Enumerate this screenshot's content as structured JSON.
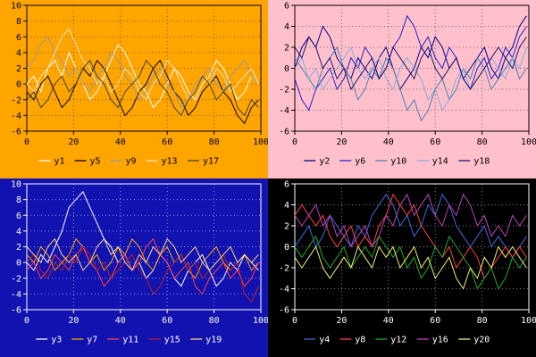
{
  "chart_data": [
    {
      "type": "line",
      "position": "top-left",
      "title": "",
      "xlabel": "",
      "ylabel": "",
      "background": "#ffa500",
      "axis_color": "#000000",
      "text_color": "#000000",
      "grid": true,
      "legend_position": "bottom",
      "xlim": [
        0,
        100
      ],
      "ylim": [
        -6,
        10
      ],
      "xticks": [
        0,
        20,
        40,
        60,
        80,
        100
      ],
      "yticks": [
        10,
        8,
        6,
        4,
        2,
        0,
        -2,
        -4,
        -6
      ],
      "x": [
        0,
        3,
        6,
        9,
        12,
        15,
        18,
        21,
        24,
        27,
        30,
        33,
        36,
        39,
        42,
        45,
        48,
        51,
        54,
        57,
        60,
        63,
        66,
        69,
        72,
        75,
        78,
        81,
        84,
        87,
        90,
        93,
        96,
        99
      ],
      "series": [
        {
          "name": "y1",
          "color": "#ffffff",
          "values": [
            0,
            1,
            -1,
            2,
            3,
            1,
            4,
            2,
            0,
            -2,
            -1,
            1,
            3,
            5,
            4,
            2,
            0,
            -1,
            -3,
            -2,
            0,
            2,
            1,
            -1,
            -2,
            0,
            1,
            3,
            2,
            0,
            -2,
            -1,
            1,
            0
          ]
        },
        {
          "name": "y5",
          "color": "#000000",
          "values": [
            -1,
            -2,
            0,
            1,
            -1,
            -3,
            -2,
            0,
            2,
            1,
            3,
            2,
            0,
            -2,
            -4,
            -3,
            -1,
            0,
            2,
            3,
            1,
            -1,
            -2,
            -4,
            -3,
            -1,
            0,
            1,
            -1,
            -2,
            -4,
            -5,
            -3,
            -2
          ]
        },
        {
          "name": "y9",
          "color": "#9a9a9a",
          "values": [
            2,
            3,
            5,
            6,
            4,
            3,
            1,
            2,
            0,
            -1,
            1,
            2,
            4,
            3,
            1,
            0,
            -2,
            -1,
            1,
            2,
            0,
            -1,
            -3,
            -2,
            0,
            1,
            2,
            0,
            -1,
            1,
            2,
            3,
            1,
            0
          ]
        },
        {
          "name": "y13",
          "color": "#f0e0c0",
          "values": [
            0,
            -1,
            1,
            2,
            4,
            6,
            7,
            5,
            3,
            2,
            0,
            1,
            -1,
            0,
            2,
            1,
            -1,
            -2,
            0,
            1,
            3,
            2,
            0,
            -2,
            -1,
            1,
            0,
            2,
            1,
            -1,
            0,
            1,
            2,
            0
          ]
        },
        {
          "name": "y17",
          "color": "#404040",
          "values": [
            -2,
            -1,
            -3,
            -2,
            0,
            1,
            -1,
            0,
            2,
            3,
            1,
            0,
            -2,
            -3,
            -1,
            0,
            1,
            3,
            2,
            0,
            -1,
            -3,
            -4,
            -2,
            -1,
            1,
            0,
            -2,
            -1,
            0,
            -3,
            -4,
            -2,
            -3
          ]
        }
      ]
    },
    {
      "type": "line",
      "position": "top-right",
      "title": "",
      "xlabel": "",
      "ylabel": "",
      "background": "#ffc0cb",
      "axis_color": "#000000",
      "text_color": "#000000",
      "grid": true,
      "legend_position": "bottom",
      "xlim": [
        0,
        100
      ],
      "ylim": [
        -6,
        6
      ],
      "xticks": [
        0,
        20,
        40,
        60,
        80,
        100
      ],
      "yticks": [
        6,
        4,
        2,
        0,
        -2,
        -4,
        -6
      ],
      "x": [
        0,
        3,
        6,
        9,
        12,
        15,
        18,
        21,
        24,
        27,
        30,
        33,
        36,
        39,
        42,
        45,
        48,
        51,
        54,
        57,
        60,
        63,
        66,
        69,
        72,
        75,
        78,
        81,
        84,
        87,
        90,
        93,
        96,
        99
      ],
      "series": [
        {
          "name": "y2",
          "color": "#00008b",
          "values": [
            0,
            2,
            3,
            2,
            4,
            3,
            1,
            0,
            -1,
            1,
            0,
            -1,
            1,
            2,
            0,
            -2,
            -1,
            0,
            2,
            1,
            3,
            2,
            0,
            1,
            -1,
            0,
            1,
            2,
            0,
            -1,
            1,
            2,
            4,
            5
          ]
        },
        {
          "name": "y6",
          "color": "#2222cc",
          "values": [
            -1,
            -3,
            -4,
            -2,
            -1,
            0,
            -2,
            -1,
            1,
            0,
            2,
            1,
            -1,
            0,
            2,
            3,
            5,
            4,
            2,
            3,
            1,
            0,
            2,
            1,
            -1,
            -2,
            0,
            1,
            -1,
            0,
            2,
            1,
            3,
            4
          ]
        },
        {
          "name": "y10",
          "color": "#4682b4",
          "values": [
            1,
            0,
            -1,
            -2,
            0,
            1,
            2,
            0,
            -1,
            -3,
            -2,
            0,
            -1,
            1,
            0,
            -2,
            -4,
            -3,
            -5,
            -4,
            -2,
            -1,
            -3,
            -2,
            0,
            -1,
            1,
            0,
            -2,
            -1,
            0,
            1,
            -1,
            0
          ]
        },
        {
          "name": "y14",
          "color": "#87aade",
          "values": [
            0,
            1,
            -1,
            0,
            -2,
            -1,
            0,
            1,
            2,
            0,
            -1,
            0,
            1,
            -1,
            -2,
            0,
            1,
            0,
            -1,
            -3,
            -2,
            -4,
            -3,
            -1,
            0,
            -2,
            -1,
            0,
            1,
            0,
            -1,
            1,
            0,
            2
          ]
        },
        {
          "name": "y18",
          "color": "#191970",
          "values": [
            2,
            1,
            3,
            2,
            0,
            1,
            -1,
            0,
            -2,
            -1,
            0,
            1,
            -1,
            0,
            2,
            1,
            0,
            -1,
            1,
            2,
            0,
            -1,
            0,
            1,
            -1,
            -2,
            -1,
            0,
            1,
            2,
            1,
            0,
            2,
            3
          ]
        }
      ]
    },
    {
      "type": "line",
      "position": "bottom-left",
      "title": "",
      "xlabel": "",
      "ylabel": "",
      "background": "#1212b0",
      "axis_color": "#ffffff",
      "text_color": "#ffffff",
      "grid": true,
      "legend_position": "bottom",
      "xlim": [
        0,
        100
      ],
      "ylim": [
        -6,
        10
      ],
      "xticks": [
        0,
        20,
        40,
        60,
        80,
        100
      ],
      "yticks": [
        10,
        8,
        6,
        4,
        2,
        0,
        -2,
        -4,
        -6
      ],
      "x": [
        0,
        3,
        6,
        9,
        12,
        15,
        18,
        21,
        24,
        27,
        30,
        33,
        36,
        39,
        42,
        45,
        48,
        51,
        54,
        57,
        60,
        63,
        66,
        69,
        72,
        75,
        78,
        81,
        84,
        87,
        90,
        93,
        96,
        99
      ],
      "series": [
        {
          "name": "y3",
          "color": "#ffffff",
          "values": [
            0,
            -1,
            1,
            0,
            2,
            4,
            7,
            8,
            9,
            7,
            5,
            3,
            2,
            0,
            1,
            -1,
            0,
            -2,
            -1,
            1,
            0,
            -2,
            -3,
            -1,
            0,
            1,
            -1,
            -3,
            -2,
            0,
            -1,
            1,
            0,
            -1
          ]
        },
        {
          "name": "y7",
          "color": "#ffa500",
          "values": [
            1,
            0,
            2,
            1,
            -1,
            0,
            1,
            3,
            2,
            0,
            1,
            -1,
            0,
            2,
            1,
            3,
            2,
            0,
            -1,
            1,
            2,
            0,
            1,
            -1,
            -2,
            0,
            1,
            2,
            0,
            -1,
            0,
            1,
            -1,
            0
          ]
        },
        {
          "name": "y11",
          "color": "#ff4040",
          "values": [
            -1,
            0,
            -2,
            -1,
            1,
            0,
            -1,
            1,
            2,
            0,
            -1,
            -3,
            -2,
            0,
            1,
            -1,
            0,
            2,
            3,
            1,
            0,
            -2,
            -1,
            0,
            -3,
            -4,
            -2,
            -1,
            0,
            -2,
            -1,
            -3,
            -2,
            0
          ]
        },
        {
          "name": "y15",
          "color": "#b22222",
          "values": [
            0,
            1,
            -1,
            -2,
            0,
            -1,
            1,
            0,
            2,
            1,
            -1,
            0,
            -2,
            -1,
            0,
            1,
            -1,
            -2,
            -4,
            -3,
            -1,
            0,
            1,
            -1,
            0,
            -2,
            -1,
            0,
            1,
            -1,
            0,
            -4,
            -5,
            -3
          ]
        },
        {
          "name": "y19",
          "color": "#ffd27f",
          "values": [
            2,
            1,
            0,
            2,
            3,
            1,
            0,
            1,
            -1,
            0,
            2,
            3,
            1,
            2,
            0,
            -1,
            1,
            0,
            2,
            1,
            3,
            2,
            0,
            1,
            2,
            0,
            -1,
            0,
            1,
            2,
            0,
            1,
            0,
            1
          ]
        }
      ]
    },
    {
      "type": "line",
      "position": "bottom-right",
      "title": "",
      "xlabel": "",
      "ylabel": "",
      "background": "#000000",
      "axis_color": "#ffffff",
      "text_color": "#ffffff",
      "grid": true,
      "legend_position": "bottom",
      "xlim": [
        0,
        100
      ],
      "ylim": [
        -6,
        6
      ],
      "xticks": [
        0,
        20,
        40,
        60,
        80,
        100
      ],
      "yticks": [
        6,
        4,
        2,
        0,
        -2,
        -4,
        -6
      ],
      "x": [
        0,
        3,
        6,
        9,
        12,
        15,
        18,
        21,
        24,
        27,
        30,
        33,
        36,
        39,
        42,
        45,
        48,
        51,
        54,
        57,
        60,
        63,
        66,
        69,
        72,
        75,
        78,
        81,
        84,
        87,
        90,
        93,
        96,
        99
      ],
      "series": [
        {
          "name": "y4",
          "color": "#4169e1",
          "values": [
            0,
            1,
            2,
            0,
            1,
            3,
            2,
            1,
            0,
            2,
            1,
            3,
            4,
            5,
            4,
            2,
            3,
            1,
            2,
            4,
            3,
            5,
            4,
            2,
            1,
            0,
            1,
            2,
            0,
            1,
            0,
            -1,
            0,
            1
          ]
        },
        {
          "name": "y8",
          "color": "#ff4040",
          "values": [
            3,
            4,
            3,
            2,
            3,
            1,
            0,
            1,
            2,
            0,
            1,
            0,
            2,
            3,
            5,
            4,
            3,
            4,
            2,
            1,
            0,
            -1,
            0,
            -2,
            -1,
            0,
            -1,
            -3,
            -2,
            -1,
            0,
            -1,
            0,
            -1
          ]
        },
        {
          "name": "y12",
          "color": "#22aa22",
          "values": [
            0,
            -1,
            0,
            1,
            -1,
            -2,
            -1,
            0,
            -2,
            -1,
            0,
            -1,
            1,
            0,
            -1,
            0,
            -2,
            -1,
            -3,
            -2,
            0,
            -1,
            1,
            0,
            -1,
            -2,
            -4,
            -3,
            -2,
            -4,
            -3,
            -1,
            -2,
            -1
          ]
        },
        {
          "name": "y16",
          "color": "#bb44bb",
          "values": [
            3,
            2,
            3,
            4,
            2,
            3,
            1,
            2,
            0,
            1,
            2,
            0,
            1,
            3,
            2,
            4,
            5,
            3,
            4,
            5,
            3,
            2,
            4,
            3,
            5,
            4,
            2,
            3,
            1,
            2,
            1,
            3,
            2,
            3
          ]
        },
        {
          "name": "y20",
          "color": "#eeee77",
          "values": [
            -1,
            -2,
            -1,
            0,
            -2,
            -3,
            -2,
            -1,
            -2,
            0,
            -1,
            -2,
            0,
            -1,
            0,
            -2,
            -1,
            0,
            -2,
            -1,
            -3,
            -2,
            -1,
            -3,
            -4,
            -2,
            -3,
            -1,
            -2,
            0,
            -1,
            0,
            -1,
            -2
          ]
        }
      ]
    }
  ]
}
